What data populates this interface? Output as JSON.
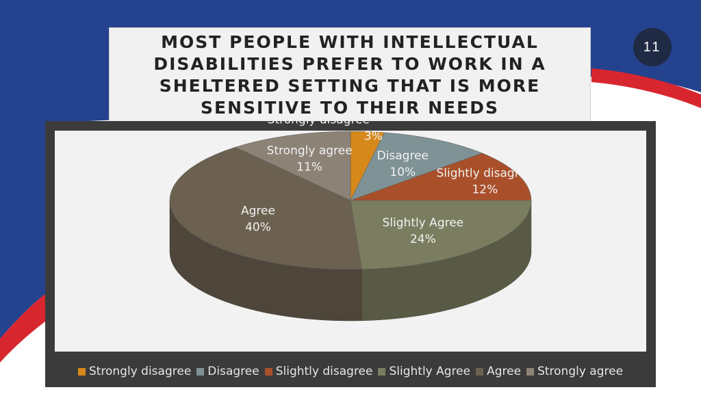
{
  "slide": {
    "title": "MOST PEOPLE WITH INTELLECTUAL DISABILITIES PREFER TO WORK IN A SHELTERED SETTING THAT IS MORE SENSITIVE TO THEIR NEEDS",
    "page_number": "11",
    "colors": {
      "blue": "#25428f",
      "red": "#d8262f",
      "dark_circle": "#1f2a44",
      "chart_panel": "#3b3b3b"
    }
  },
  "chart_data": {
    "type": "pie",
    "title": "",
    "categories": [
      "Strongly disagree",
      "Disagree",
      "Slightly disagree",
      "Slightly Agree",
      "Agree",
      "Strongly agree"
    ],
    "values": [
      3,
      10,
      12,
      24,
      40,
      11
    ],
    "labels": [
      "3%",
      "10%",
      "12%",
      "24%",
      "40%",
      "11%"
    ],
    "colors": [
      "#d6891a",
      "#7f9295",
      "#a9502b",
      "#7b7d60",
      "#6c6150",
      "#8c8276"
    ],
    "legend_position": "bottom",
    "style": "3d"
  }
}
